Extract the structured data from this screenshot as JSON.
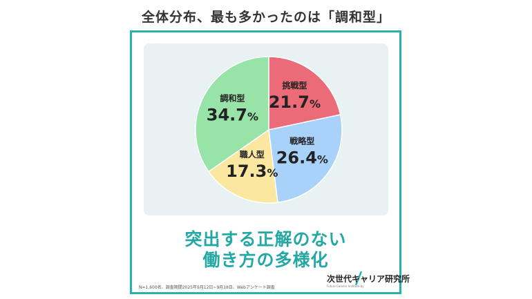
{
  "headline": "全体分布、最も多かったのは「調和型」",
  "caption": {
    "line1": "突出する正解のない",
    "line2": "働き方の多様化"
  },
  "footnote": "N=1,600名、調査期間2025年9月12日~9月18日、Webアンケート調査",
  "logo": {
    "name": "次世代キャリア研究所",
    "sub": "Future Careers Institute by"
  },
  "chart_data": {
    "type": "pie",
    "slices": [
      {
        "label": "挑戦型",
        "value": 21.7,
        "color": "#ec6b79"
      },
      {
        "label": "戦略型",
        "value": 26.4,
        "color": "#a9d2fb"
      },
      {
        "label": "職人型",
        "value": 17.3,
        "color": "#fbe7a0"
      },
      {
        "label": "調和型",
        "value": 34.7,
        "color": "#98e3a8"
      }
    ],
    "unit": "%",
    "start_angle_deg": 0,
    "direction": "clockwise"
  }
}
